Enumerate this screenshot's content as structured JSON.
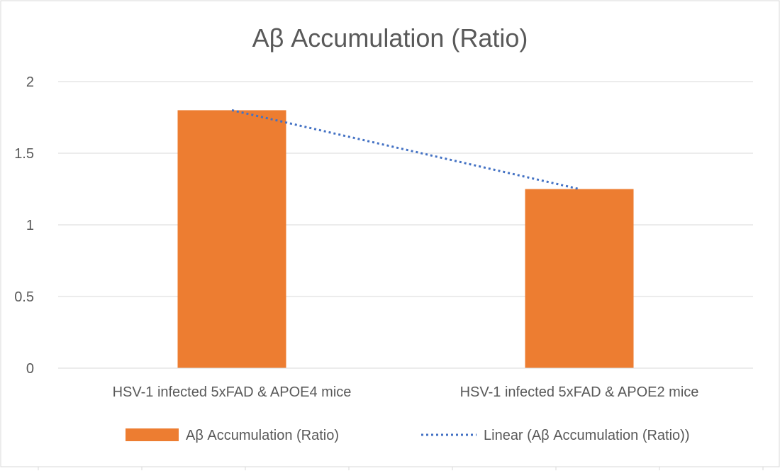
{
  "chart_data": {
    "type": "bar",
    "title": "Aβ Accumulation (Ratio)",
    "categories": [
      "HSV-1 infected 5xFAD & APOE4 mice",
      "HSV-1 infected 5xFAD & APOE2 mice"
    ],
    "series": [
      {
        "name": "Aβ Accumulation (Ratio)",
        "values": [
          1.8,
          1.25
        ],
        "color": "#ED7D31"
      }
    ],
    "trendline": {
      "name": "Linear (Aβ Accumulation (Ratio))",
      "type": "linear",
      "color": "#4472C4",
      "style": "dotted"
    },
    "ylim": [
      0,
      2
    ],
    "yticks": [
      "0",
      "0.5",
      "1",
      "1.5",
      "2"
    ],
    "xlabel": "",
    "ylabel": "",
    "grid": true,
    "legend_position": "bottom"
  }
}
